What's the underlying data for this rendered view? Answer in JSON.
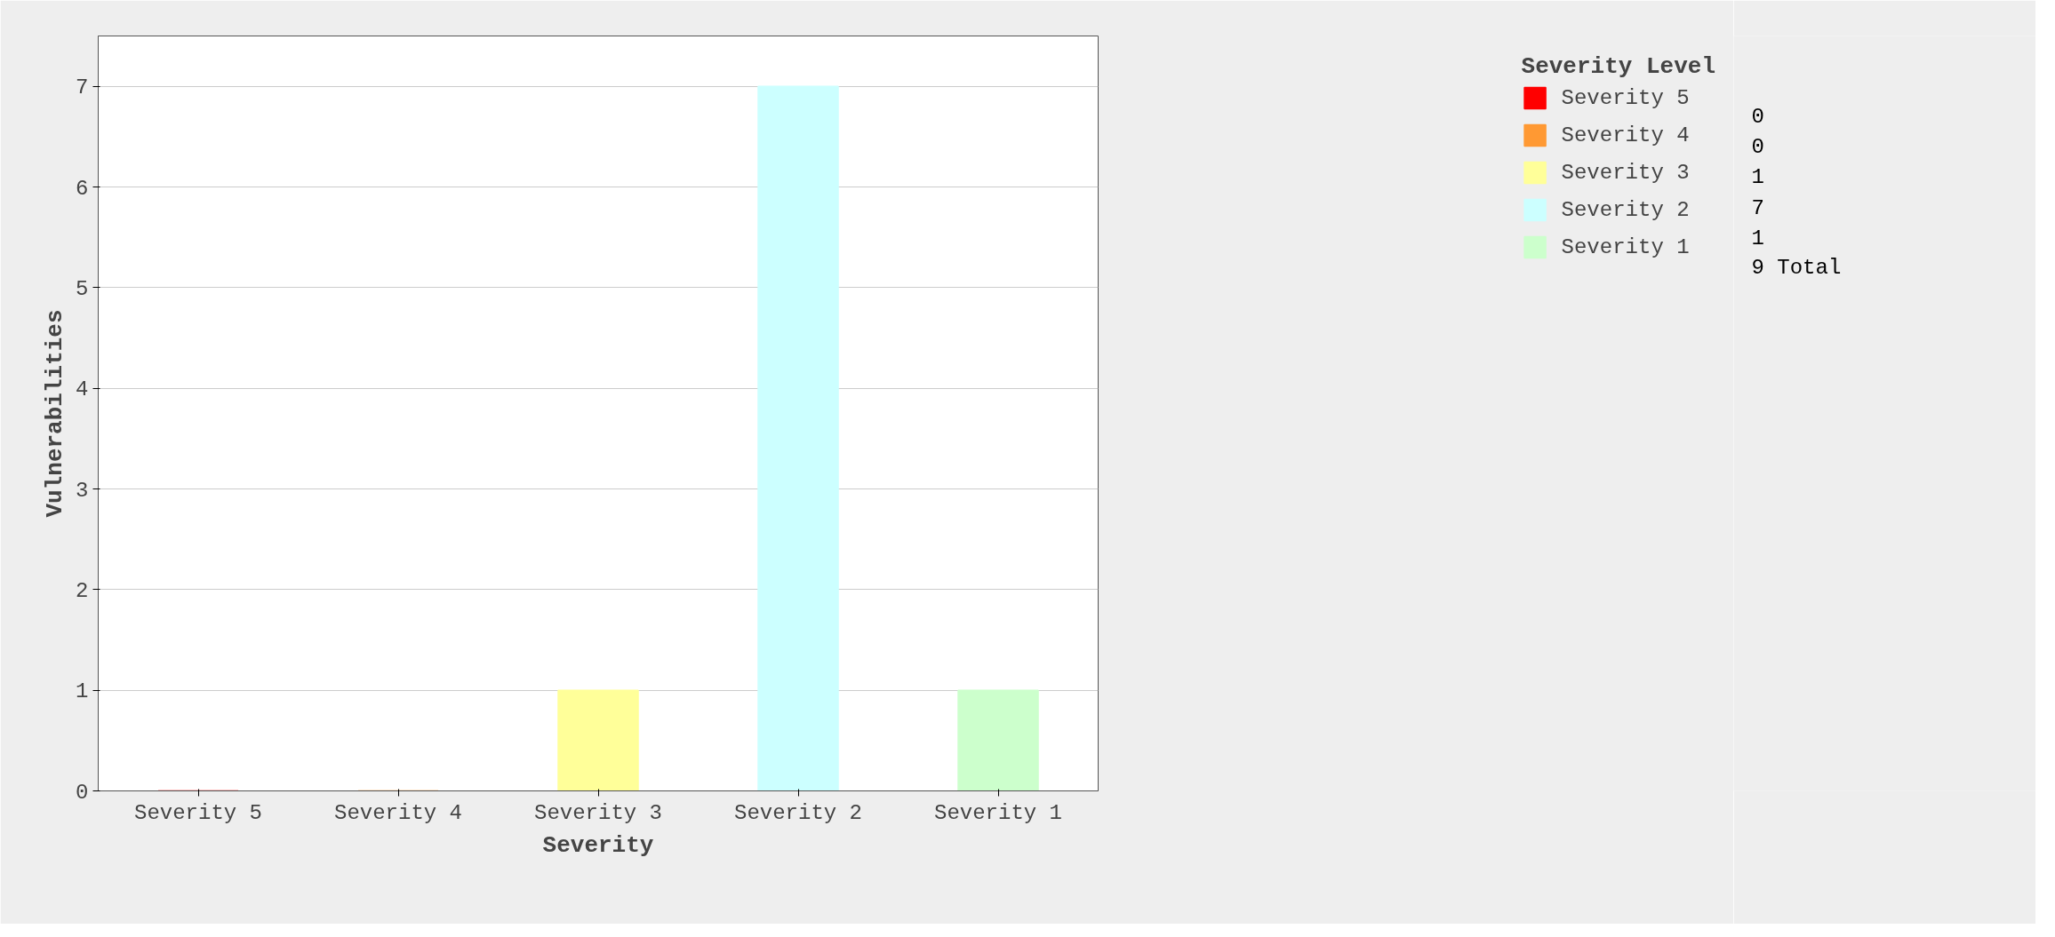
{
  "chart_data": {
    "type": "bar",
    "xlabel": "Severity",
    "ylabel": "Vulnerabilities",
    "legend_title": "Severity Level",
    "categories": [
      "Severity 5",
      "Severity 4",
      "Severity 3",
      "Severity 2",
      "Severity 1"
    ],
    "series": [
      {
        "name": "Severity 5",
        "color": "#ff0000",
        "values": [
          0,
          null,
          null,
          null,
          null
        ]
      },
      {
        "name": "Severity 4",
        "color": "#ff9933",
        "values": [
          null,
          0,
          null,
          null,
          null
        ]
      },
      {
        "name": "Severity 3",
        "color": "#ffff99",
        "values": [
          null,
          null,
          1,
          null,
          null
        ]
      },
      {
        "name": "Severity 2",
        "color": "#ccffff",
        "values": [
          null,
          null,
          null,
          7,
          null
        ]
      },
      {
        "name": "Severity 1",
        "color": "#ccffcc",
        "values": [
          null,
          null,
          null,
          null,
          1
        ]
      }
    ],
    "ylim": [
      0,
      7.5
    ],
    "yticks": [
      0,
      1,
      2,
      3,
      4,
      5,
      6,
      7
    ],
    "grid": "y",
    "legend": "right",
    "annotations": [
      "0",
      "0",
      "1",
      "7",
      "1",
      "9 Total"
    ]
  }
}
